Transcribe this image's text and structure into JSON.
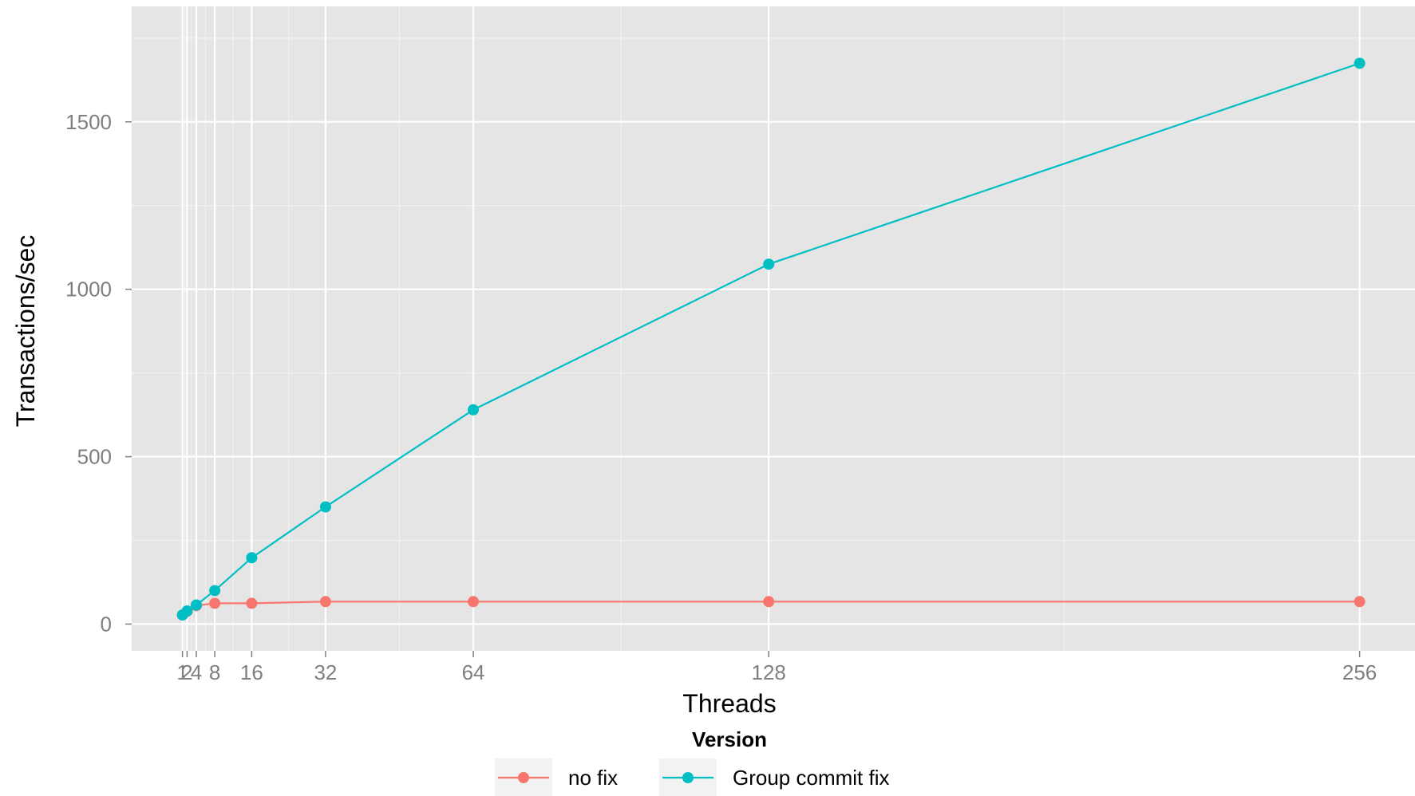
{
  "chart_data": {
    "type": "line",
    "title": "",
    "xlabel": "Threads",
    "ylabel": "Transactions/sec",
    "x": [
      1,
      2,
      4,
      8,
      16,
      32,
      64,
      128,
      256
    ],
    "x_tick_labels": [
      "1",
      "2",
      "4",
      "8",
      "16",
      "32",
      "64",
      "128",
      "256"
    ],
    "xlim": [
      -10,
      268
    ],
    "y_ticks": [
      0,
      500,
      1000,
      1500
    ],
    "y_tick_labels": [
      "0",
      "500",
      "1000",
      "1500"
    ],
    "ylim": [
      -80,
      1845
    ],
    "grid": true,
    "legend": {
      "title": "Version",
      "position": "bottom"
    },
    "series": [
      {
        "name": "no fix",
        "color": "#F8766D",
        "values": [
          27,
          38,
          55,
          62,
          62,
          67,
          67,
          67,
          67
        ]
      },
      {
        "name": "Group commit fix",
        "color": "#00BFC4",
        "values": [
          27,
          39,
          57,
          100,
          198,
          350,
          640,
          1075,
          1675
        ]
      }
    ]
  }
}
